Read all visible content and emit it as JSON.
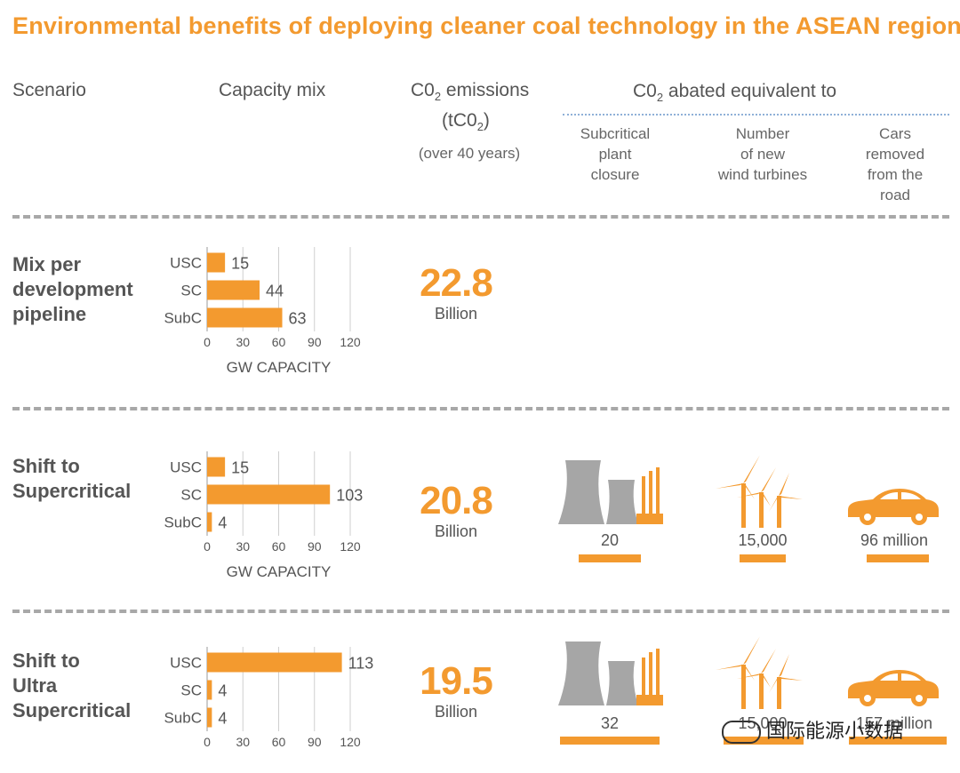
{
  "title": "Environmental benefits of deploying cleaner coal technology in the ASEAN region",
  "headers": {
    "scenario": "Scenario",
    "capacity_mix": "Capacity mix",
    "emissions_l1": "C0",
    "emissions_l1_sub": "2",
    "emissions_l1_rest": " emissions",
    "emissions_l2a": "(tC0",
    "emissions_l2_sub": "2",
    "emissions_l2b": ")",
    "emissions_note": "(over 40 years)",
    "abated_a": "C0",
    "abated_sub": "2",
    "abated_b": " abated equivalent to",
    "col1_l1": "Subcritical",
    "col1_l2": "plant",
    "col1_l3": "closure",
    "col2_l1": "Number",
    "col2_l2": "of new",
    "col2_l3": "wind turbines",
    "col3_l1": "Cars",
    "col3_l2": "removed",
    "col3_l3": "from the",
    "col3_l4": "road"
  },
  "colors": {
    "accent": "#F39A2F",
    "gray": "#a6a6a6",
    "text": "#555555"
  },
  "scenarios": [
    {
      "name_l1": "Mix per",
      "name_l2": "development",
      "name_l3": "pipeline",
      "emissions": "22.8",
      "unit": "Billion"
    },
    {
      "name_l1": "Shift to",
      "name_l2": "Supercritical",
      "emissions": "20.8",
      "unit": "Billion",
      "plants": "20",
      "turbines": "15,000",
      "cars": "96 million"
    },
    {
      "name_l1": "Shift to",
      "name_l2": "Ultra",
      "name_l3": "Supercritical",
      "emissions": "19.5",
      "unit": "Billion",
      "plants": "32",
      "turbines": "15,000",
      "cars": "157 million"
    }
  ],
  "chart_data": [
    {
      "type": "bar",
      "orientation": "horizontal",
      "categories": [
        "USC",
        "SC",
        "SubC"
      ],
      "values": [
        15,
        44,
        63
      ],
      "xlabel": "GW CAPACITY",
      "xlim": [
        0,
        120
      ],
      "xticks": [
        0,
        30,
        60,
        90,
        120
      ]
    },
    {
      "type": "bar",
      "orientation": "horizontal",
      "categories": [
        "USC",
        "SC",
        "SubC"
      ],
      "values": [
        15,
        103,
        4
      ],
      "xlabel": "GW CAPACITY",
      "xlim": [
        0,
        120
      ],
      "xticks": [
        0,
        30,
        60,
        90,
        120
      ]
    },
    {
      "type": "bar",
      "orientation": "horizontal",
      "categories": [
        "USC",
        "SC",
        "SubC"
      ],
      "values": [
        113,
        4,
        4
      ],
      "xlabel": "",
      "xlim": [
        0,
        120
      ],
      "xticks": [
        0,
        30,
        60,
        90,
        120
      ]
    }
  ],
  "watermark": "国际能源小数据"
}
